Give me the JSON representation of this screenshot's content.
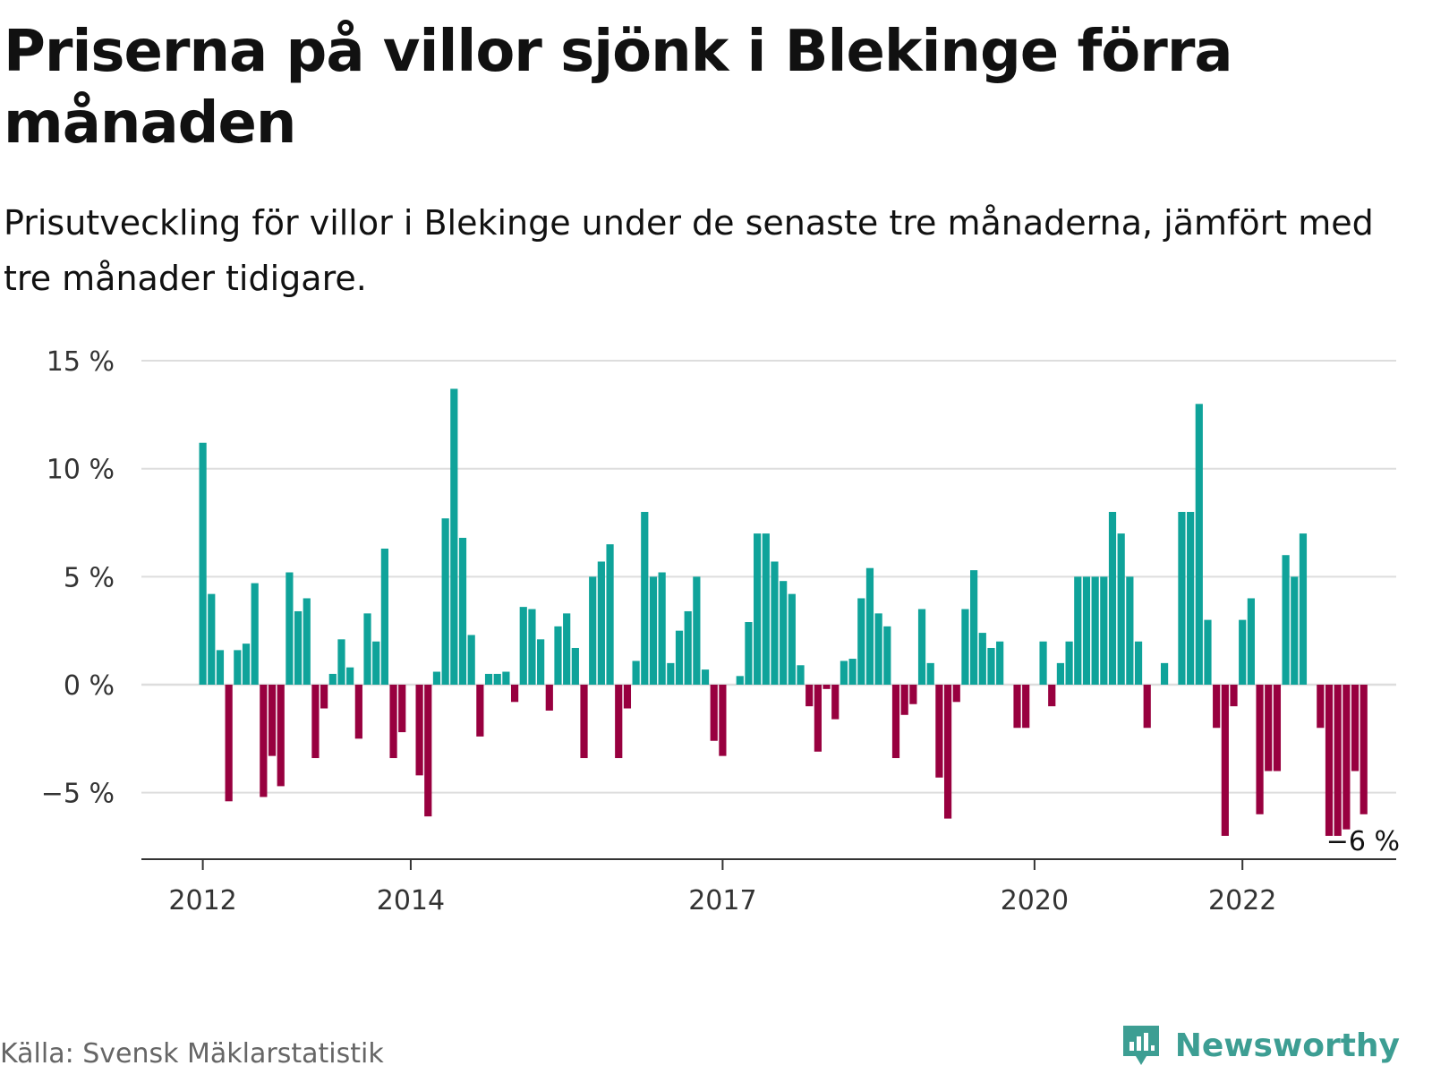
{
  "title": "Priserna på villor sjönk i Blekinge förra månaden",
  "subtitle": "Prisutveckling för villor i Blekinge under de senaste tre månaderna, jämfört med tre månader tidigare.",
  "source": "Källa: Svensk Mäklarstatistik",
  "brand": {
    "name": "Newsworthy",
    "icon": "newsworthy-logo-icon",
    "color": "#3d9e93"
  },
  "colors": {
    "positive": "#0fa39a",
    "negative": "#98003f",
    "grid": "#dddddd",
    "axis": "#333333"
  },
  "chart_data": {
    "type": "bar",
    "title": "",
    "xlabel": "",
    "ylabel": "",
    "ylim": [
      -8,
      15
    ],
    "grid": true,
    "start_month": "2012-01",
    "x_ticks": [
      "2012",
      "2014",
      "2017",
      "2020",
      "2022"
    ],
    "y_ticks": [
      {
        "value": 15,
        "label": "15 %"
      },
      {
        "value": 10,
        "label": "10 %"
      },
      {
        "value": 5,
        "label": "5 %"
      },
      {
        "value": 0,
        "label": "0 %"
      },
      {
        "value": -5,
        "label": "−5 %"
      }
    ],
    "annotation": {
      "label": "−6 %"
    },
    "values": [
      11.2,
      4.2,
      1.6,
      -5.4,
      1.6,
      1.9,
      4.7,
      -5.2,
      -3.3,
      -4.7,
      5.2,
      3.4,
      4.0,
      -3.4,
      -1.1,
      0.5,
      2.1,
      0.8,
      -2.5,
      3.3,
      2.0,
      6.3,
      -3.4,
      -2.2,
      0.0,
      -4.2,
      -6.1,
      0.6,
      7.7,
      13.7,
      6.8,
      2.3,
      -2.4,
      0.5,
      0.5,
      0.6,
      -0.8,
      3.6,
      3.5,
      2.1,
      -1.2,
      2.7,
      3.3,
      1.7,
      -3.4,
      5.0,
      5.7,
      6.5,
      -3.4,
      -1.1,
      1.1,
      8.0,
      5.0,
      5.2,
      1.0,
      2.5,
      3.4,
      5.0,
      0.7,
      -2.6,
      -3.3,
      0.0,
      0.4,
      2.9,
      7.0,
      7.0,
      5.7,
      4.8,
      4.2,
      0.9,
      -1.0,
      -3.1,
      -0.2,
      -1.6,
      1.1,
      1.2,
      4.0,
      5.4,
      3.3,
      2.7,
      -3.4,
      -1.4,
      -0.9,
      3.5,
      1.0,
      -4.3,
      -6.2,
      -0.8,
      3.5,
      5.3,
      2.4,
      1.7,
      2.0,
      0.0,
      -2.0,
      -2.0,
      0.0,
      2.0,
      -1.0,
      1.0,
      2.0,
      5.0,
      5.0,
      5.0,
      5.0,
      8.0,
      7.0,
      5.0,
      2.0,
      -2.0,
      0.0,
      1.0,
      0.0,
      8.0,
      8.0,
      13.0,
      3.0,
      -2.0,
      -7.0,
      -1.0,
      3.0,
      4.0,
      -6.0,
      -4.0,
      -4.0,
      6.0,
      5.0,
      7.0,
      0.0,
      -2.0,
      -7.0,
      -7.0,
      -6.7,
      -4.0,
      -6.0
    ]
  }
}
